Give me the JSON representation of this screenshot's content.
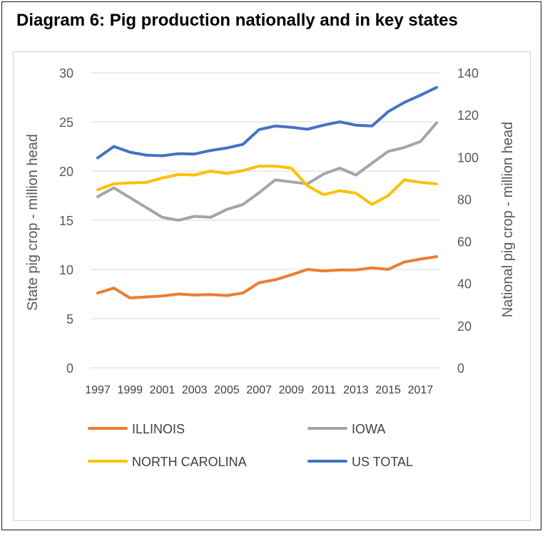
{
  "chart_data": {
    "type": "line",
    "title": "Diagram 6: Pig production nationally and in key states",
    "ylabel_left": "State pig crop - million head",
    "ylabel_right": "National pig crop - million head",
    "ylim_left": [
      0,
      30
    ],
    "ylim_right": [
      0,
      140
    ],
    "yticks_left": [
      "0",
      "5",
      "10",
      "15",
      "20",
      "25",
      "30"
    ],
    "yticks_right": [
      "0",
      "20",
      "40",
      "60",
      "80",
      "100",
      "120",
      "140"
    ],
    "grid": true,
    "legend_position": "bottom",
    "x": [
      1997,
      1998,
      1999,
      2000,
      2001,
      2002,
      2003,
      2004,
      2005,
      2006,
      2007,
      2008,
      2009,
      2010,
      2011,
      2012,
      2013,
      2014,
      2015,
      2016,
      2017,
      2018
    ],
    "xtick_labels": [
      "1997",
      "1999",
      "2001",
      "2003",
      "2005",
      "2007",
      "2009",
      "2011",
      "2013",
      "2015",
      "2017"
    ],
    "series": [
      {
        "name": "ILLINOIS",
        "axis": "left",
        "color": "#ED7D31",
        "values": [
          7.6,
          8.1,
          7.1,
          7.2,
          7.3,
          7.5,
          7.4,
          7.45,
          7.35,
          7.6,
          8.65,
          8.95,
          9.45,
          10.0,
          9.85,
          9.95,
          9.95,
          10.15,
          10.0,
          10.75,
          11.05,
          11.3
        ]
      },
      {
        "name": "IOWA",
        "axis": "left",
        "color": "#A5A5A5",
        "values": [
          17.4,
          18.3,
          17.3,
          16.3,
          15.3,
          15.0,
          15.4,
          15.3,
          16.1,
          16.6,
          17.8,
          19.1,
          18.9,
          18.7,
          19.7,
          20.3,
          19.6,
          20.8,
          22.0,
          22.4,
          23.0,
          24.9
        ]
      },
      {
        "name": "NORTH CAROLINA",
        "axis": "left",
        "color": "#FFC000",
        "values": [
          18.1,
          18.7,
          18.8,
          18.85,
          19.3,
          19.65,
          19.6,
          20.0,
          19.75,
          20.05,
          20.5,
          20.5,
          20.3,
          18.5,
          17.6,
          18.0,
          17.75,
          16.6,
          17.5,
          19.1,
          18.85,
          18.7
        ]
      },
      {
        "name": "US TOTAL",
        "axis": "right",
        "color": "#4472C4",
        "values": [
          99.6,
          105.0,
          102.3,
          100.9,
          100.6,
          101.6,
          101.4,
          103.1,
          104.3,
          106.0,
          113.0,
          114.7,
          114.1,
          113.2,
          115.1,
          116.7,
          115.1,
          114.7,
          121.5,
          125.9,
          129.3,
          133.0
        ]
      }
    ]
  }
}
